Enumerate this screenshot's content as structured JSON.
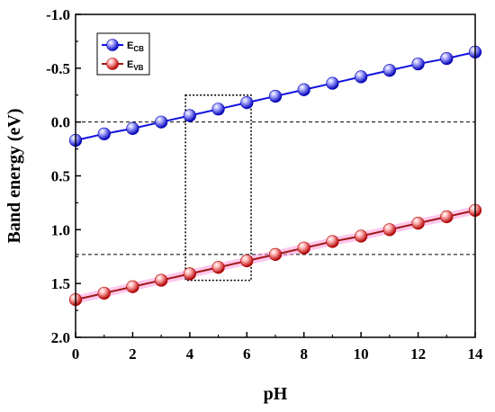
{
  "chart_data": {
    "type": "line",
    "title": "",
    "xlabel": "pH",
    "ylabel": "Band energy (eV)",
    "xlim": [
      0,
      14
    ],
    "ylim": [
      -1.0,
      2.0
    ],
    "y_inverted": true,
    "grid": false,
    "legend_position": "top-left",
    "x_ticks": [
      "0",
      "2",
      "4",
      "6",
      "8",
      "10",
      "12",
      "14"
    ],
    "x_tick_values": [
      0,
      2,
      4,
      6,
      8,
      10,
      12,
      14
    ],
    "y_ticks": [
      "-1.0",
      "-0.5",
      "0.0",
      "0.5",
      "1.0",
      "1.5",
      "2.0"
    ],
    "y_tick_values": [
      -1.0,
      -0.5,
      0.0,
      0.5,
      1.0,
      1.5,
      2.0
    ],
    "x": [
      0,
      1,
      2,
      3,
      4,
      5,
      6,
      7,
      8,
      9,
      10,
      11,
      12,
      13,
      14
    ],
    "series": [
      {
        "name": "E",
        "name_sub": "CB",
        "color": "#1010e0",
        "marker_light": "#a8a8ff",
        "marker_dark": "#0000b8",
        "values": [
          0.17,
          0.11,
          0.06,
          0.0,
          -0.06,
          -0.12,
          -0.18,
          -0.24,
          -0.3,
          -0.36,
          -0.42,
          -0.48,
          -0.54,
          -0.59,
          -0.65
        ]
      },
      {
        "name": "E",
        "name_sub": "VB",
        "color": "#a01818",
        "glow": "#ff99dd",
        "marker_light": "#ffb0b0",
        "marker_dark": "#b00000",
        "values": [
          1.65,
          1.59,
          1.53,
          1.47,
          1.41,
          1.35,
          1.29,
          1.23,
          1.17,
          1.11,
          1.06,
          1.0,
          0.94,
          0.88,
          0.82
        ]
      }
    ],
    "reference_lines_y": [
      0.0,
      1.23
    ],
    "highlight_box": {
      "x_range": [
        3.85,
        6.15
      ],
      "y_range": [
        -0.25,
        1.47
      ]
    }
  }
}
